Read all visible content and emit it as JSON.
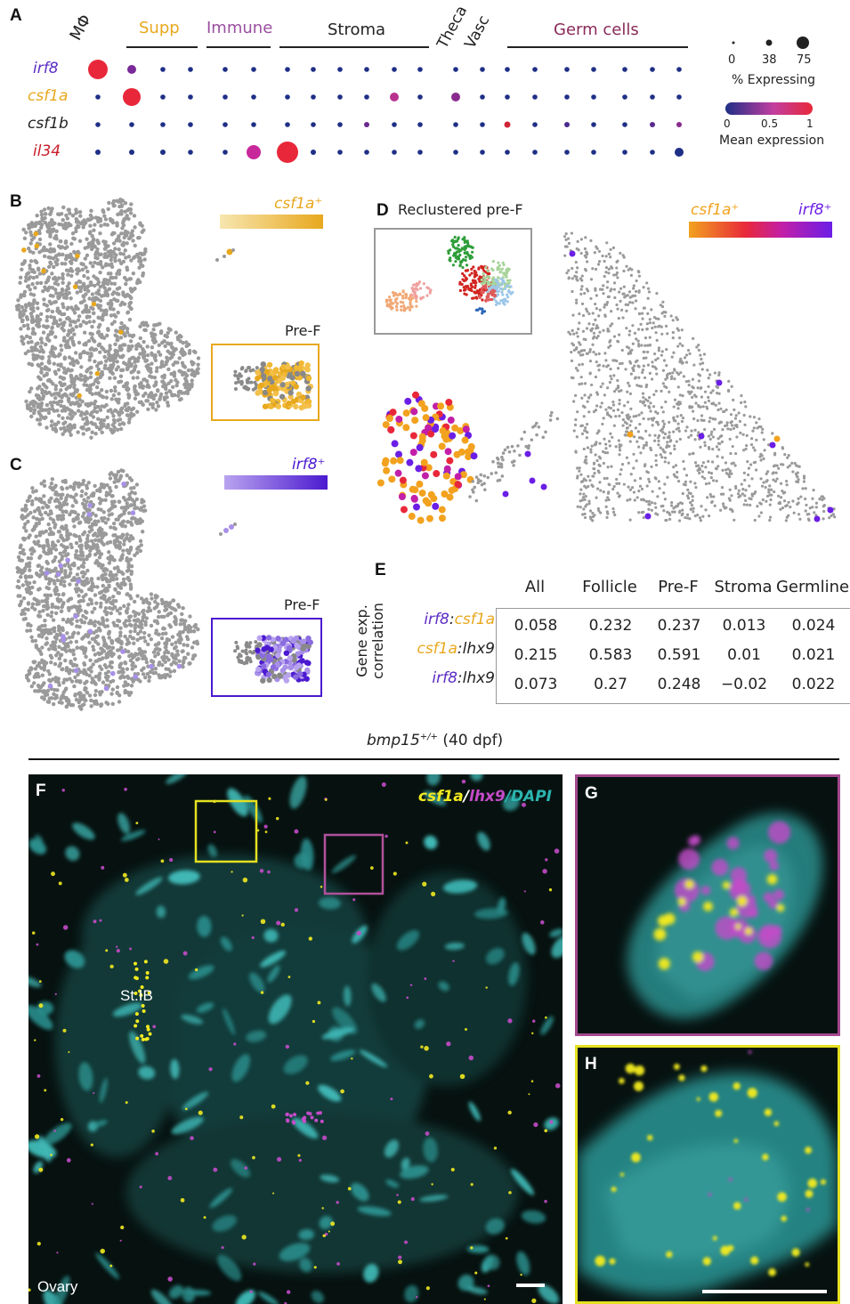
{
  "panels": {
    "A": "A",
    "B": "B",
    "C": "C",
    "D": "D",
    "E": "E",
    "F": "F",
    "G": "G",
    "H": "H"
  },
  "panelA": {
    "categories": {
      "mphi": "MΦ",
      "supp": "Supp",
      "immune": "Immune",
      "stroma": "Stroma",
      "theca": "Theca",
      "vasc": "Vasc",
      "germ": "Germ cells"
    },
    "genes": [
      "irf8",
      "csf1a",
      "csf1b",
      "il34"
    ],
    "gene_colors": [
      "#5b2cc4",
      "#e8a81d",
      "#222222",
      "#c81e2a"
    ],
    "size_legend": {
      "values": [
        "0",
        "38",
        "75"
      ],
      "title": "% Expressing"
    },
    "color_legend": {
      "ticks": [
        "0",
        "0.5",
        "1"
      ],
      "title": "Mean expression",
      "colors": [
        "#1e2f86",
        "#c23fa0",
        "#e8283a"
      ]
    }
  },
  "chart_data": {
    "type": "dot-plot",
    "title": "",
    "rows": [
      "irf8",
      "csf1a",
      "csf1b",
      "il34"
    ],
    "column_groups": [
      "MΦ",
      "Supp",
      "Immune",
      "Stroma",
      "Theca",
      "Vasc",
      "Germ cells"
    ],
    "notable_points": [
      {
        "gene": "irf8",
        "group": "MΦ",
        "pct_expressing": 75,
        "mean_expression": 1
      },
      {
        "gene": "irf8",
        "group": "Supp",
        "pct_expressing": 20,
        "mean_expression": 0.4
      },
      {
        "gene": "csf1a",
        "group": "Supp",
        "pct_expressing": 75,
        "mean_expression": 1
      },
      {
        "gene": "csf1a",
        "group": "Stroma",
        "pct_expressing": 25,
        "mean_expression": 0.5
      },
      {
        "gene": "csf1b",
        "group": "Vasc",
        "pct_expressing": 10,
        "mean_expression": 0.9
      },
      {
        "gene": "il34",
        "group": "Immune",
        "pct_expressing": 60,
        "mean_expression": 0.6
      },
      {
        "gene": "il34",
        "group": "Immune",
        "pct_expressing": 95,
        "mean_expression": 1
      }
    ],
    "size_scale": [
      0,
      38,
      75
    ],
    "color_scale": [
      0,
      0.5,
      1
    ]
  },
  "panelB": {
    "legend": "csf1a⁺",
    "inset": "Pre-F",
    "colors": [
      "#f7e6b0",
      "#e8a81d"
    ]
  },
  "panelC": {
    "legend": "irf8⁺",
    "inset": "Pre-F",
    "colors": [
      "#b9a3ef",
      "#4b1ad0"
    ]
  },
  "panelD": {
    "title": "Reclustered pre-F",
    "legend_left": "csf1a⁺",
    "legend_right": "irf8⁺",
    "colors": [
      "#f2a21e",
      "#e8283a",
      "#c21fa8",
      "#6b1ee6"
    ]
  },
  "panelE": {
    "axis_label": [
      "Gene exp.",
      "correlation"
    ],
    "columns": [
      "All",
      "Follicle",
      "Pre-F",
      "Stroma",
      "Germline"
    ],
    "rows": [
      {
        "pair": [
          {
            "t": "irf8",
            "c": "#5b2cc4"
          },
          {
            "t": ":",
            "c": "#222"
          },
          {
            "t": "csf1a",
            "c": "#e8a81d"
          }
        ],
        "values": [
          "0.058",
          "0.232",
          "0.237",
          "0.013",
          "0.024"
        ]
      },
      {
        "pair": [
          {
            "t": "csf1a",
            "c": "#e8a81d"
          },
          {
            "t": ":lhx9",
            "c": "#222"
          }
        ],
        "values": [
          "0.215",
          "0.583",
          "0.591",
          "0.01",
          "0.021"
        ]
      },
      {
        "pair": [
          {
            "t": "irf8",
            "c": "#5b2cc4"
          },
          {
            "t": ":lhx9",
            "c": "#222"
          }
        ],
        "values": [
          "0.073",
          "0.27",
          "0.248",
          "−0.02",
          "0.022"
        ]
      }
    ]
  },
  "section": {
    "genotype": "bmp15",
    "superscript": "+/+",
    "age": " (40 dpf)"
  },
  "panelF": {
    "channels": [
      {
        "t": "csf1a",
        "c": "#f2ea20"
      },
      {
        "t": "/",
        "c": "#fff"
      },
      {
        "t": "lhx9",
        "c": "#c44bc9"
      },
      {
        "t": "/DAPI",
        "c": "#2bb5b0"
      }
    ],
    "structure_label": "St.IB",
    "tissue_label": "Ovary"
  }
}
